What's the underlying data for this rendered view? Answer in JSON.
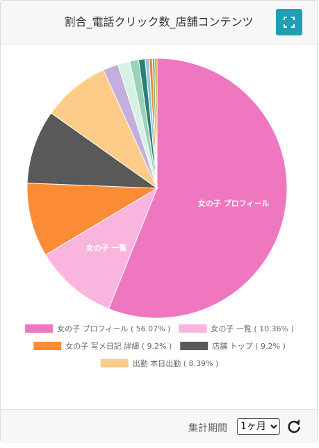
{
  "header": {
    "title": "割合_電話クリック数_店舗コンテンツ"
  },
  "footer": {
    "period_label": "集計期間",
    "period_value": "1ヶ月"
  },
  "chart_data": {
    "type": "pie",
    "slices": [
      {
        "label": "女の子 プロフィール",
        "value": 56.07,
        "color": "#ee77c0",
        "show_label": true
      },
      {
        "label": "女の子 一覧",
        "value": 10.36,
        "color": "#f9b5dd",
        "show_label": true
      },
      {
        "label": "女の子 写メ日記 詳細",
        "value": 9.2,
        "color": "#fb8c35",
        "show_label": false
      },
      {
        "label": "店舗 トップ",
        "value": 9.2,
        "color": "#595959",
        "show_label": false
      },
      {
        "label": "出勤 本日出勤",
        "value": 8.39,
        "color": "#fdcc88",
        "show_label": false
      },
      {
        "label": "",
        "value": 1.9,
        "color": "#c4aedd",
        "show_label": false
      },
      {
        "label": "",
        "value": 1.5,
        "color": "#d6f2e3",
        "show_label": false
      },
      {
        "label": "",
        "value": 1.1,
        "color": "#99d2b8",
        "show_label": false
      },
      {
        "label": "",
        "value": 0.8,
        "color": "#2e7d78",
        "show_label": false
      },
      {
        "label": "",
        "value": 0.5,
        "color": "#9ac6d9",
        "show_label": false
      },
      {
        "label": "",
        "value": 0.4,
        "color": "#e8893a",
        "show_label": false
      },
      {
        "label": "",
        "value": 0.3,
        "color": "#7ab373",
        "show_label": false
      },
      {
        "label": "",
        "value": 0.28,
        "color": "#c0a020",
        "show_label": false
      }
    ],
    "legend": [
      {
        "text": "女の子 プロフィール ( 56.07% )",
        "color": "#ee77c0"
      },
      {
        "text": "女の子 一覧 ( 10.36% )",
        "color": "#f9b5dd"
      },
      {
        "text": "女の子 写メ日記 詳細 ( 9.2% )",
        "color": "#fb8c35"
      },
      {
        "text": "店舗 トップ ( 9.2% )",
        "color": "#595959"
      },
      {
        "text": "出勤 本日出勤 ( 8.39% )",
        "color": "#fdcc88"
      }
    ],
    "legend_position": "bottom"
  }
}
